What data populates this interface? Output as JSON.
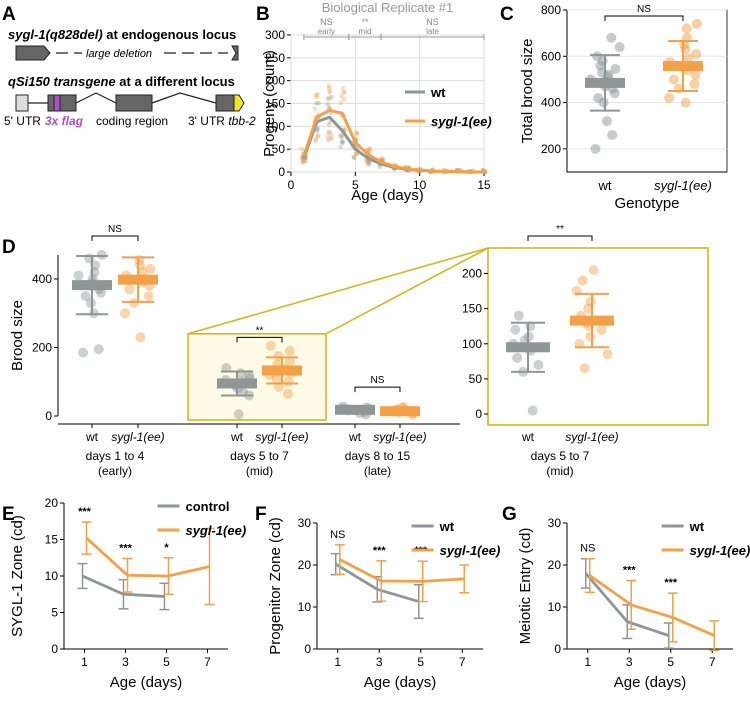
{
  "colors": {
    "wt": "#8e9696",
    "ee": "#f2a149",
    "zoom": "#d9b420",
    "flag": "#b04ec8",
    "tail": "#f2e52b"
  },
  "panel_letters": [
    "A",
    "B",
    "C",
    "D",
    "E",
    "F",
    "G"
  ],
  "panelA": {
    "line1_gene": "sygl-1(q828del)",
    "line1_rest": " at endogenous locus",
    "deletion_label": "large deletion",
    "line2_gene": "qSi150 transgene",
    "line2_rest": " at a different locus",
    "label_utr5": "5' UTR",
    "label_flag": "3x flag",
    "label_coding": "coding region",
    "label_utr3": "3' UTR",
    "label_tbb": "tbb-2"
  },
  "chart_data": [
    {
      "id": "B",
      "type": "line",
      "title": "Biological Replicate #1",
      "xlabel": "Age (days)",
      "ylabel": "Progeny (count)",
      "xlim": [
        0,
        15
      ],
      "ylim": [
        0,
        300
      ],
      "xticks": [
        0,
        5,
        10,
        15
      ],
      "yticks": [
        0,
        50,
        100,
        150,
        200,
        250,
        300
      ],
      "brackets": [
        {
          "label": "NS",
          "sub": "early",
          "from": 1,
          "to": 4.5
        },
        {
          "label": "**",
          "sub": "mid",
          "from": 4.5,
          "to": 7
        },
        {
          "label": "NS",
          "sub": "late",
          "from": 7,
          "to": 15
        }
      ],
      "series": [
        {
          "name": "wt",
          "x": [
            1,
            2,
            3,
            4,
            5,
            6,
            7,
            8,
            9,
            10,
            11,
            12,
            13,
            14,
            15
          ],
          "values": [
            30,
            110,
            120,
            90,
            50,
            30,
            18,
            10,
            6,
            4,
            2,
            1,
            1,
            0,
            0
          ]
        },
        {
          "name": "sygl-1(ee)",
          "x": [
            1,
            2,
            3,
            4,
            5,
            6,
            7,
            8,
            9,
            10,
            11,
            12,
            13,
            14,
            15
          ],
          "values": [
            35,
            120,
            135,
            128,
            65,
            38,
            22,
            12,
            7,
            4,
            2,
            1,
            1,
            0,
            0
          ]
        }
      ],
      "legend": [
        "wt",
        "sygl-1(ee)"
      ]
    },
    {
      "id": "C",
      "type": "scatter",
      "xlabel": "Genotype",
      "ylabel": "Total brood size",
      "categories": [
        "wt",
        "sygl-1(ee)"
      ],
      "ylim": [
        100,
        800
      ],
      "yticks": [
        200,
        400,
        600,
        800
      ],
      "means": [
        485,
        558
      ],
      "sd": [
        120,
        108
      ],
      "sig": "NS",
      "points": {
        "wt": [
          200,
          260,
          320,
          400,
          420,
          440,
          460,
          470,
          480,
          490,
          500,
          510,
          520,
          530,
          545,
          560,
          580,
          600,
          640,
          680
        ],
        "sygl-1(ee)": [
          400,
          420,
          460,
          480,
          500,
          520,
          540,
          560,
          575,
          590,
          610,
          630,
          650,
          680,
          720,
          740
        ]
      }
    },
    {
      "id": "D",
      "type": "scatter",
      "ylabel": "Brood size",
      "ylim": [
        0,
        470
      ],
      "yticks": [
        0,
        200,
        400
      ],
      "groups": [
        {
          "label": "days 1 to 4",
          "sub": "(early)",
          "means": [
            382,
            398
          ],
          "sd": [
            85,
            65
          ],
          "sig": "NS",
          "wt": [
            185,
            195,
            300,
            330,
            350,
            360,
            370,
            380,
            390,
            400,
            410,
            420,
            440,
            460,
            470
          ],
          "ee": [
            230,
            300,
            330,
            350,
            370,
            380,
            390,
            400,
            410,
            420,
            430,
            440,
            455
          ]
        },
        {
          "label": "days 5 to 7",
          "sub": "(mid)",
          "means": [
            95,
            133
          ],
          "sd": [
            35,
            38
          ],
          "sig": "**",
          "wt": [
            5,
            60,
            70,
            80,
            90,
            95,
            100,
            105,
            110,
            120,
            125,
            140
          ],
          "ee": [
            65,
            85,
            100,
            110,
            120,
            125,
            130,
            140,
            150,
            160,
            175,
            190,
            205
          ]
        },
        {
          "label": "days 8 to 15",
          "sub": "(late)",
          "means": [
            18,
            14
          ],
          "sd": [
            8,
            8
          ],
          "sig": "NS",
          "wt": [
            4,
            8,
            12,
            16,
            20,
            22,
            25,
            28
          ],
          "ee": [
            4,
            8,
            10,
            14,
            16,
            18,
            20,
            24,
            26
          ]
        }
      ],
      "categories": [
        "wt",
        "sygl-1(ee)"
      ],
      "inset": {
        "label": "days 5 to 7",
        "sub": "(mid)",
        "ylim": [
          0,
          225
        ],
        "yticks": [
          0,
          50,
          100,
          150,
          200
        ]
      }
    },
    {
      "id": "E",
      "type": "line",
      "xlabel": "Age (days)",
      "ylabel": "SYGL-1 Zone (cd)",
      "ylim": [
        0,
        20
      ],
      "yticks": [
        0,
        5,
        10,
        15,
        20
      ],
      "x": [
        1,
        3,
        5,
        7
      ],
      "xticks": [
        1,
        3,
        5,
        7
      ],
      "sig": [
        "***",
        "***",
        "*",
        ""
      ],
      "series": [
        {
          "name": "control",
          "x": [
            1,
            3,
            5
          ],
          "values": [
            10,
            7.5,
            7.2
          ],
          "err": [
            1.7,
            2.0,
            1.8
          ]
        },
        {
          "name": "sygl-1(ee)",
          "x": [
            1,
            3,
            5,
            7
          ],
          "values": [
            15.2,
            10.1,
            10.0,
            11.3
          ],
          "err": [
            2.2,
            2.3,
            2.5,
            5.2
          ]
        }
      ],
      "legend": [
        "control",
        "sygl-1(ee)"
      ]
    },
    {
      "id": "F",
      "type": "line",
      "xlabel": "Age (days)",
      "ylabel": "Progenitor Zone (cd)",
      "ylim": [
        0,
        30
      ],
      "yticks": [
        0,
        10,
        20,
        30
      ],
      "x": [
        1,
        3,
        5,
        7
      ],
      "xticks": [
        1,
        3,
        5,
        7
      ],
      "sig": [
        "NS",
        "***",
        "***",
        ""
      ],
      "series": [
        {
          "name": "wt",
          "x": [
            1,
            3,
            5
          ],
          "values": [
            20.2,
            14.2,
            11.3
          ],
          "err": [
            2.5,
            3.0,
            4.0
          ]
        },
        {
          "name": "sygl-1(ee)",
          "x": [
            1,
            3,
            5,
            7
          ],
          "values": [
            21.3,
            16.2,
            16.1,
            16.7
          ],
          "err": [
            3.5,
            4.8,
            4.8,
            3.3
          ]
        }
      ],
      "legend": [
        "wt",
        "sygl-1(ee)"
      ]
    },
    {
      "id": "G",
      "type": "line",
      "xlabel": "Age (days)",
      "ylabel": "Meiotic Entry (cd)",
      "ylim": [
        0,
        30
      ],
      "yticks": [
        0,
        10,
        20,
        30
      ],
      "x": [
        1,
        3,
        5,
        7
      ],
      "xticks": [
        1,
        3,
        5,
        7
      ],
      "sig": [
        "NS",
        "***",
        "***",
        ""
      ],
      "series": [
        {
          "name": "wt",
          "x": [
            1,
            3,
            5
          ],
          "values": [
            18,
            6.5,
            3.2
          ],
          "err": [
            3.5,
            4.0,
            3.0
          ]
        },
        {
          "name": "sygl-1(ee)",
          "x": [
            1,
            3,
            5,
            7
          ],
          "values": [
            17.5,
            10.5,
            7.5,
            3.2
          ],
          "err": [
            4.0,
            5.8,
            5.8,
            3.5
          ]
        }
      ],
      "legend": [
        "wt",
        "sygl-1(ee)"
      ]
    }
  ]
}
